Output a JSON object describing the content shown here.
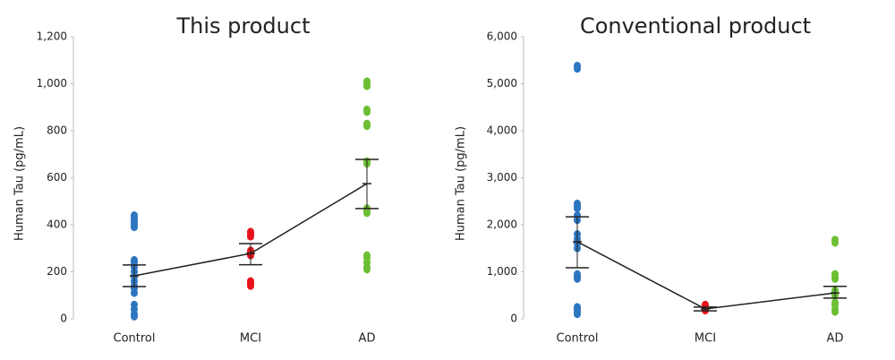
{
  "chart_data": [
    {
      "type": "strip",
      "title": "This product",
      "y_label": "Human Tau (pg/mL)",
      "categories": [
        "Control",
        "MCI",
        "AD"
      ],
      "colors": [
        "#2e75c0",
        "#e8121b",
        "#6cbf32"
      ],
      "points": [
        [
          440,
          430,
          420,
          410,
          400,
          390,
          250,
          240,
          220,
          200,
          180,
          160,
          140,
          130,
          110,
          60,
          40,
          20,
          10
        ],
        [
          370,
          360,
          350,
          290,
          280,
          270,
          160,
          150,
          140
        ],
        [
          1010,
          1000,
          990,
          890,
          880,
          830,
          820,
          670,
          660,
          470,
          460,
          450,
          270,
          260,
          240,
          220,
          210
        ]
      ],
      "means": [
        183,
        278,
        575
      ],
      "upper": [
        229,
        320,
        678
      ],
      "lower": [
        137,
        230,
        469
      ],
      "ylim": [
        0,
        1200
      ],
      "yticks": [
        0,
        200,
        400,
        600,
        800,
        {
          "value": 1000,
          "label": "1,000"
        },
        {
          "value": 1200,
          "label": "1,200"
        }
      ]
    },
    {
      "type": "strip",
      "title": "Conventional product",
      "y_label": "Human Tau (pg/mL)",
      "categories": [
        "Control",
        "MCI",
        "AD"
      ],
      "colors": [
        "#2e75c0",
        "#e8121b",
        "#6cbf32"
      ],
      "points": [
        [
          5380,
          5320,
          2450,
          2400,
          2350,
          2200,
          2100,
          1800,
          1700,
          1600,
          1500,
          950,
          900,
          850,
          250,
          200,
          150,
          100
        ],
        [
          300,
          280,
          250,
          230,
          200,
          180
        ],
        [
          1680,
          1620,
          950,
          880,
          850,
          600,
          550,
          500,
          350,
          300,
          200,
          150
        ]
      ],
      "means": [
        1640,
        210,
        550
      ],
      "upper": [
        2170,
        250,
        690
      ],
      "lower": [
        1085,
        170,
        440
      ],
      "ylim": [
        0,
        6000
      ],
      "yticks": [
        0,
        {
          "value": 1000,
          "label": "1,000"
        },
        {
          "value": 2000,
          "label": "2,000"
        },
        {
          "value": 3000,
          "label": "3,000"
        },
        {
          "value": 4000,
          "label": "4,000"
        },
        {
          "value": 5000,
          "label": "5,000"
        },
        {
          "value": 6000,
          "label": "6,000"
        }
      ]
    }
  ]
}
